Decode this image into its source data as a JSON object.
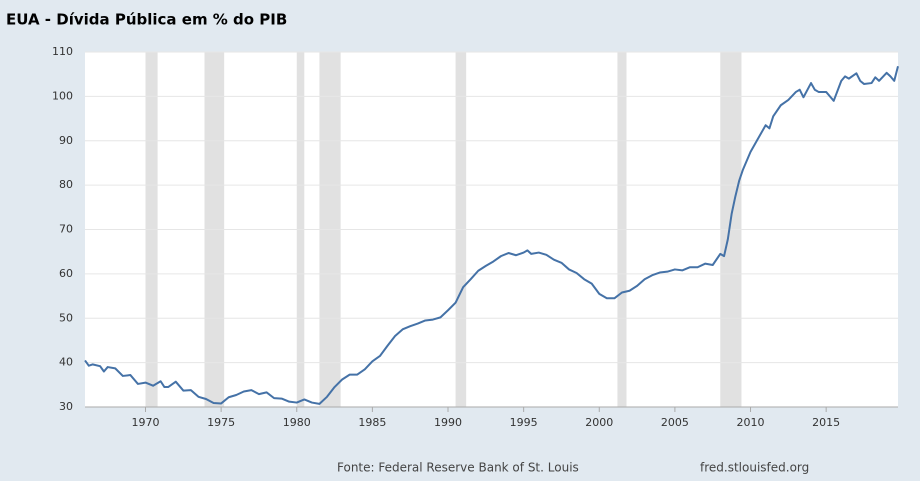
{
  "chart_data": {
    "type": "line",
    "title": "EUA - Dívida Pública em % do PIB",
    "source": "Fonte: Federal Reserve Bank of St. Louis",
    "site": "fred.stlouisfed.org",
    "color": "#4572a7",
    "recession_color": "#e1e1e1",
    "grid": true,
    "xlim": [
      1966,
      2019.75
    ],
    "ylim": [
      30,
      110
    ],
    "xticks": [
      1970,
      1975,
      1980,
      1985,
      1990,
      1995,
      2000,
      2005,
      2010,
      2015
    ],
    "yticks": [
      30,
      40,
      50,
      60,
      70,
      80,
      90,
      100,
      110
    ],
    "recessions": [
      [
        1970.0,
        1970.8
      ],
      [
        1973.9,
        1975.2
      ],
      [
        1980.0,
        1980.5
      ],
      [
        1981.5,
        1982.9
      ],
      [
        1990.5,
        1991.2
      ],
      [
        2001.2,
        2001.8
      ],
      [
        2008.0,
        2009.4
      ]
    ],
    "x": [
      1966,
      1966.25,
      1966.5,
      1967,
      1967.25,
      1967.5,
      1968,
      1968.5,
      1969,
      1969.5,
      1970,
      1970.5,
      1971,
      1971.25,
      1971.5,
      1972,
      1972.5,
      1973,
      1973.5,
      1974,
      1974.5,
      1975,
      1975.5,
      1976,
      1976.5,
      1977,
      1977.5,
      1978,
      1978.5,
      1979,
      1979.5,
      1980,
      1980.5,
      1981,
      1981.5,
      1982,
      1982.5,
      1983,
      1983.5,
      1984,
      1984.5,
      1985,
      1985.5,
      1986,
      1986.5,
      1987,
      1987.5,
      1988,
      1988.5,
      1989,
      1989.5,
      1990,
      1990.5,
      1991,
      1991.5,
      1992,
      1992.5,
      1993,
      1993.5,
      1994,
      1994.5,
      1995,
      1995.25,
      1995.5,
      1996,
      1996.5,
      1997,
      1997.5,
      1998,
      1998.5,
      1999,
      1999.5,
      2000,
      2000.5,
      2001,
      2001.5,
      2002,
      2002.5,
      2003,
      2003.5,
      2004,
      2004.5,
      2005,
      2005.5,
      2006,
      2006.5,
      2007,
      2007.5,
      2008,
      2008.25,
      2008.5,
      2008.75,
      2009,
      2009.25,
      2009.5,
      2010,
      2010.5,
      2011,
      2011.25,
      2011.5,
      2012,
      2012.5,
      2013,
      2013.25,
      2013.5,
      2014,
      2014.25,
      2014.5,
      2015,
      2015.25,
      2015.5,
      2016,
      2016.25,
      2016.5,
      2017,
      2017.25,
      2017.5,
      2018,
      2018.25,
      2018.5,
      2019,
      2019.25,
      2019.5,
      2019.75
    ],
    "values": [
      40.5,
      39.3,
      39.6,
      39.2,
      38.0,
      39.0,
      38.7,
      37.0,
      37.2,
      35.2,
      35.5,
      34.8,
      35.8,
      34.5,
      34.5,
      35.7,
      33.7,
      33.8,
      32.3,
      31.8,
      30.9,
      30.8,
      32.2,
      32.7,
      33.5,
      33.8,
      32.9,
      33.3,
      32.0,
      31.9,
      31.2,
      31.0,
      31.7,
      31.0,
      30.7,
      32.3,
      34.5,
      36.2,
      37.3,
      37.3,
      38.5,
      40.3,
      41.5,
      43.8,
      46.0,
      47.5,
      48.2,
      48.8,
      49.5,
      49.7,
      50.2,
      51.8,
      53.5,
      57.0,
      58.8,
      60.7,
      61.8,
      62.8,
      64.0,
      64.7,
      64.2,
      64.8,
      65.3,
      64.5,
      64.8,
      64.3,
      63.2,
      62.5,
      61.0,
      60.2,
      58.8,
      57.8,
      55.5,
      54.5,
      54.5,
      55.8,
      56.2,
      57.3,
      58.8,
      59.7,
      60.3,
      60.5,
      61.0,
      60.8,
      61.5,
      61.5,
      62.3,
      62.0,
      64.5,
      64.0,
      67.8,
      73.5,
      77.5,
      81.0,
      83.5,
      87.5,
      90.5,
      93.5,
      92.8,
      95.5,
      98.0,
      99.2,
      101.0,
      101.5,
      99.8,
      103.0,
      101.5,
      101.0,
      101.0,
      100.0,
      99.0,
      103.5,
      104.5,
      104.0,
      105.2,
      103.5,
      102.8,
      103.0,
      104.3,
      103.5,
      105.3,
      104.5,
      103.5,
      106.8
    ]
  }
}
